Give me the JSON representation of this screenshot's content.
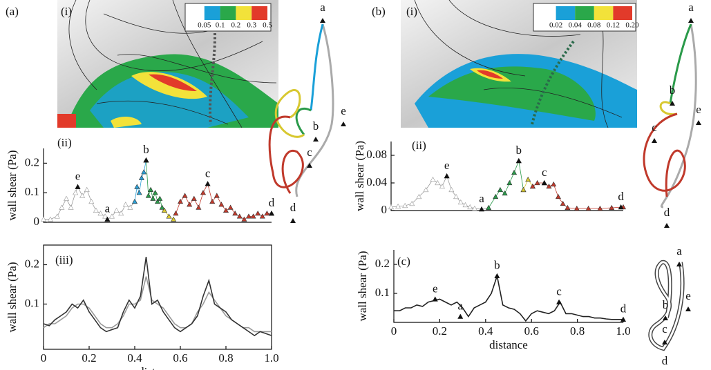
{
  "figure_labels": {
    "a": "(a)",
    "a_i": "(i)",
    "b": "(b)",
    "b_i": "(i)"
  },
  "colorbars": [
    {
      "colors": [
        "#ffffff",
        "#1aa0d8",
        "#2aa84a",
        "#f2e23a",
        "#e23a2a"
      ],
      "labels": [
        "0.05",
        "0.1",
        "0.2",
        "0.3",
        "0.5"
      ]
    },
    {
      "colors": [
        "#ffffff",
        "#1aa0d8",
        "#2aa84a",
        "#f2e23a",
        "#e23a2a"
      ],
      "labels": [
        "0.02",
        "0.04",
        "0.08",
        "0.12",
        "0.20"
      ]
    }
  ],
  "schematics": [
    {
      "labels": [
        "a",
        "b",
        "c",
        "d",
        "e"
      ]
    },
    {
      "labels": [
        "a",
        "b",
        "c",
        "d",
        "e"
      ]
    },
    {
      "labels": [
        "a",
        "b",
        "c",
        "d",
        "e"
      ]
    }
  ],
  "chart_data": [
    {
      "type": "line",
      "label": "(ii)",
      "ylabel": "wall shear (Pa)",
      "xlim": [
        0,
        1
      ],
      "ylim": [
        0,
        0.25
      ],
      "yticks": [
        0,
        0.1,
        0.2
      ],
      "marker": "triangle",
      "series": [
        {
          "color": "#999999",
          "filled": false,
          "x": [
            0,
            0.03,
            0.06,
            0.08,
            0.1,
            0.12,
            0.14,
            0.15,
            0.17,
            0.19,
            0.21,
            0.23,
            0.25,
            0.27,
            0.28,
            0.3,
            0.32,
            0.34,
            0.36,
            0.38,
            0.4
          ],
          "values": [
            0.01,
            0.01,
            0.02,
            0.05,
            0.08,
            0.05,
            0.1,
            0.12,
            0.09,
            0.11,
            0.07,
            0.04,
            0.03,
            0.02,
            0.01,
            0.02,
            0.04,
            0.03,
            0.06,
            0.05,
            0.07
          ]
        },
        {
          "color": "#2a9fd6",
          "filled": true,
          "x": [
            0.4,
            0.41,
            0.42,
            0.43,
            0.44,
            0.45
          ],
          "values": [
            0.07,
            0.12,
            0.1,
            0.15,
            0.17,
            0.21
          ]
        },
        {
          "color": "#2a9a4a",
          "filled": true,
          "x": [
            0.45,
            0.46,
            0.47,
            0.48,
            0.49,
            0.5,
            0.51,
            0.52,
            0.53
          ],
          "values": [
            0.21,
            0.09,
            0.11,
            0.08,
            0.1,
            0.07,
            0.08,
            0.05,
            0.04
          ]
        },
        {
          "color": "#d8c830",
          "filled": true,
          "x": [
            0.53,
            0.55,
            0.57
          ],
          "values": [
            0.04,
            0.02,
            0.01
          ]
        },
        {
          "color": "#c0392b",
          "filled": true,
          "x": [
            0.58,
            0.6,
            0.62,
            0.64,
            0.66,
            0.68,
            0.7,
            0.72,
            0.74,
            0.76,
            0.78,
            0.8,
            0.82,
            0.84,
            0.86,
            0.88,
            0.9,
            0.92,
            0.94,
            0.96,
            0.98,
            1
          ],
          "values": [
            0.03,
            0.07,
            0.09,
            0.06,
            0.08,
            0.05,
            0.1,
            0.13,
            0.07,
            0.09,
            0.06,
            0.04,
            0.05,
            0.03,
            0.02,
            0.01,
            0.02,
            0.02,
            0.03,
            0.02,
            0.03,
            0.03
          ]
        }
      ],
      "annotations": [
        {
          "text": "e",
          "x": 0.15,
          "y": 0.12
        },
        {
          "text": "a",
          "x": 0.28,
          "y": 0.01
        },
        {
          "text": "b",
          "x": 0.45,
          "y": 0.21
        },
        {
          "text": "c",
          "x": 0.72,
          "y": 0.13
        },
        {
          "text": "d",
          "x": 1,
          "y": 0.03
        }
      ]
    },
    {
      "type": "line",
      "label": "(iii)",
      "ylabel": "wall shear (Pa)",
      "xlabel": "distance",
      "xlim": [
        0,
        1
      ],
      "ylim": [
        -0.015,
        0.25
      ],
      "yticks": [
        0.1,
        0.2
      ],
      "xticks": [
        0,
        0.2,
        0.4,
        0.6,
        0.8,
        {
          "value": 1,
          "label": "1.0"
        }
      ],
      "series": [
        {
          "color": "#9a9a9a",
          "x": [
            0,
            0.025,
            0.05,
            0.075,
            0.1,
            0.125,
            0.15,
            0.175,
            0.2,
            0.225,
            0.25,
            0.275,
            0.3,
            0.325,
            0.35,
            0.375,
            0.4,
            0.425,
            0.45,
            0.475,
            0.5,
            0.525,
            0.55,
            0.575,
            0.6,
            0.625,
            0.65,
            0.675,
            0.7,
            0.725,
            0.75,
            0.775,
            0.8,
            0.825,
            0.85,
            0.875,
            0.9,
            0.925,
            0.95,
            0.975,
            1
          ],
          "values": [
            0.04,
            0.05,
            0.05,
            0.06,
            0.07,
            0.09,
            0.1,
            0.1,
            0.09,
            0.07,
            0.05,
            0.04,
            0.04,
            0.05,
            0.07,
            0.1,
            0.1,
            0.11,
            0.17,
            0.11,
            0.1,
            0.09,
            0.07,
            0.05,
            0.04,
            0.04,
            0.05,
            0.08,
            0.1,
            0.13,
            0.11,
            0.09,
            0.07,
            0.06,
            0.05,
            0.04,
            0.04,
            0.03,
            0.03,
            0.03,
            0.03
          ]
        },
        {
          "color": "#333333",
          "x": [
            0,
            0.025,
            0.05,
            0.075,
            0.1,
            0.125,
            0.15,
            0.175,
            0.2,
            0.225,
            0.25,
            0.275,
            0.3,
            0.325,
            0.35,
            0.375,
            0.4,
            0.425,
            0.45,
            0.475,
            0.5,
            0.525,
            0.55,
            0.575,
            0.6,
            0.625,
            0.65,
            0.675,
            0.7,
            0.725,
            0.75,
            0.775,
            0.8,
            0.825,
            0.85,
            0.875,
            0.9,
            0.925,
            0.95,
            0.975,
            1
          ],
          "values": [
            0.05,
            0.045,
            0.06,
            0.07,
            0.08,
            0.1,
            0.09,
            0.11,
            0.08,
            0.06,
            0.04,
            0.03,
            0.035,
            0.04,
            0.08,
            0.11,
            0.09,
            0.12,
            0.22,
            0.1,
            0.11,
            0.08,
            0.06,
            0.04,
            0.03,
            0.04,
            0.05,
            0.07,
            0.12,
            0.16,
            0.1,
            0.09,
            0.08,
            0.06,
            0.05,
            0.04,
            0.03,
            0.02,
            0.03,
            0.025,
            0.02
          ]
        }
      ]
    },
    {
      "type": "line",
      "label": "(ii)",
      "ylabel": "wall shear (Pa)",
      "xlim": [
        0,
        1
      ],
      "ylim": [
        0,
        0.1
      ],
      "yticks": [
        0,
        0.04,
        0.08
      ],
      "marker": "triangle",
      "series": [
        {
          "color": "#999999",
          "filled": false,
          "x": [
            0,
            0.03,
            0.06,
            0.09,
            0.12,
            0.15,
            0.18,
            0.2,
            0.22,
            0.24,
            0.26,
            0.28,
            0.3,
            0.32,
            0.34,
            0.36,
            0.39,
            0.42
          ],
          "values": [
            0.005,
            0.006,
            0.007,
            0.01,
            0.02,
            0.03,
            0.045,
            0.04,
            0.035,
            0.05,
            0.03,
            0.02,
            0.012,
            0.008,
            0.005,
            0.003,
            0.002,
            0.004
          ]
        },
        {
          "color": "#2a9a4a",
          "filled": true,
          "x": [
            0.42,
            0.45,
            0.47,
            0.49,
            0.51,
            0.53,
            0.55,
            0.57
          ],
          "values": [
            0.004,
            0.02,
            0.03,
            0.025,
            0.04,
            0.055,
            0.072,
            0.03
          ]
        },
        {
          "color": "#d8c830",
          "filled": true,
          "x": [
            0.57,
            0.59,
            0.61
          ],
          "values": [
            0.03,
            0.045,
            0.035
          ]
        },
        {
          "color": "#c0392b",
          "filled": true,
          "x": [
            0.61,
            0.63,
            0.66,
            0.68,
            0.7,
            0.72,
            0.74,
            0.76,
            0.8,
            0.85,
            0.9,
            0.95,
            1
          ],
          "values": [
            0.035,
            0.04,
            0.04,
            0.035,
            0.038,
            0.02,
            0.01,
            0.004,
            0.003,
            0.003,
            0.003,
            0.004,
            0.005
          ]
        }
      ],
      "annotations": [
        {
          "text": "e",
          "x": 0.24,
          "y": 0.05
        },
        {
          "text": "a",
          "x": 0.39,
          "y": 0.002
        },
        {
          "text": "b",
          "x": 0.55,
          "y": 0.072
        },
        {
          "text": "c",
          "x": 0.66,
          "y": 0.04
        },
        {
          "text": "d",
          "x": 0.99,
          "y": 0.005
        }
      ]
    },
    {
      "type": "line",
      "label": "(c)",
      "ylabel": "wall  shear (Pa)",
      "xlabel": "distance",
      "xlim": [
        0,
        1
      ],
      "ylim": [
        0,
        0.25
      ],
      "yticks": [
        0.1,
        0.2
      ],
      "xticks": [
        0,
        0.2,
        0.4,
        0.6,
        0.8,
        {
          "value": 1,
          "label": "1.0"
        }
      ],
      "series": [
        {
          "color": "#222222",
          "x": [
            0,
            0.025,
            0.05,
            0.075,
            0.1,
            0.125,
            0.15,
            0.175,
            0.2,
            0.225,
            0.25,
            0.275,
            0.3,
            0.325,
            0.35,
            0.375,
            0.4,
            0.425,
            0.45,
            0.475,
            0.5,
            0.525,
            0.55,
            0.575,
            0.6,
            0.625,
            0.65,
            0.675,
            0.7,
            0.725,
            0.75,
            0.775,
            0.8,
            0.825,
            0.85,
            0.875,
            0.9,
            0.925,
            0.95,
            0.975,
            1
          ],
          "values": [
            0.04,
            0.04,
            0.05,
            0.05,
            0.06,
            0.055,
            0.07,
            0.075,
            0.08,
            0.07,
            0.06,
            0.07,
            0.05,
            0.02,
            0.05,
            0.06,
            0.07,
            0.1,
            0.16,
            0.06,
            0.05,
            0.045,
            0.03,
            0.005,
            0.03,
            0.04,
            0.035,
            0.03,
            0.04,
            0.07,
            0.03,
            0.03,
            0.025,
            0.02,
            0.02,
            0.015,
            0.015,
            0.012,
            0.01,
            0.01,
            0.01
          ]
        }
      ],
      "annotations": [
        {
          "text": "e",
          "x": 0.18,
          "y": 0.08
        },
        {
          "text": "a",
          "x": 0.29,
          "y": 0.02
        },
        {
          "text": "b",
          "x": 0.45,
          "y": 0.16
        },
        {
          "text": "c",
          "x": 0.72,
          "y": 0.07
        },
        {
          "text": "d",
          "x": 1,
          "y": 0.01
        }
      ]
    }
  ]
}
